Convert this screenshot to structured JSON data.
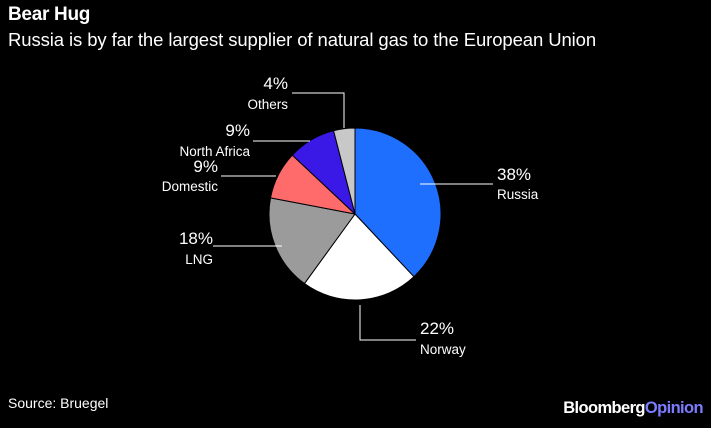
{
  "header": {
    "title": "Bear Hug",
    "subtitle": "Russia is by far the largest supplier of natural gas to the European Union"
  },
  "footer": {
    "source": "Source: Bruegel",
    "brand_main": "Bloomberg",
    "brand_accent": "Opinion"
  },
  "colors": {
    "background": "#000000",
    "text": "#ffffff",
    "brand_accent": "#7c7cff"
  },
  "chart_data": {
    "type": "pie",
    "title": "Bear Hug",
    "subtitle": "Russia is by far the largest supplier of natural gas to the European Union",
    "slices": [
      {
        "label": "Russia",
        "value": 38,
        "value_label": "38%",
        "color": "#1f6fff"
      },
      {
        "label": "Norway",
        "value": 22,
        "value_label": "22%",
        "color": "#ffffff"
      },
      {
        "label": "LNG",
        "value": 18,
        "value_label": "18%",
        "color": "#9b9b9b"
      },
      {
        "label": "Domestic",
        "value": 9,
        "value_label": "9%",
        "color": "#ff6b6b"
      },
      {
        "label": "North Africa",
        "value": 9,
        "value_label": "9%",
        "color": "#3a18e6"
      },
      {
        "label": "Others",
        "value": 4,
        "value_label": "4%",
        "color": "#c8c8c8"
      }
    ],
    "start": "12 o'clock",
    "direction": "clockwise",
    "labels": "outside with leader lines"
  }
}
